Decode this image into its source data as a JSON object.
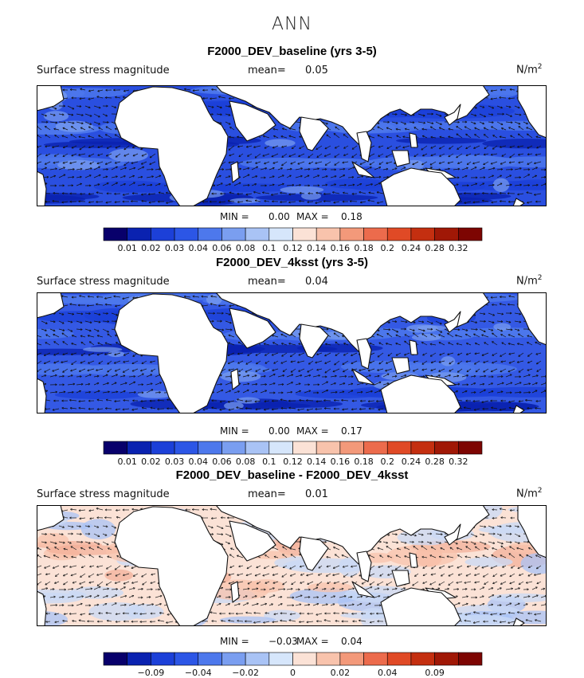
{
  "figure": {
    "season": "ANN",
    "variable": "Surface stress magnitude",
    "units_base": "N/m",
    "units_exp": "2",
    "mean_label": "mean=",
    "min_label": "MIN =",
    "max_label": "MAX ="
  },
  "panels": [
    {
      "title": "F2000_DEV_baseline (yrs 3-5)",
      "mean": "0.05",
      "min": "0.00",
      "max": "0.18",
      "colorbar": "abs",
      "style": "abs_strong"
    },
    {
      "title": "F2000_DEV_4ksst (yrs 3-5)",
      "mean": "0.04",
      "min": "0.00",
      "max": "0.17",
      "colorbar": "abs",
      "style": "abs_mid"
    },
    {
      "title": "F2000_DEV_baseline - F2000_DEV_4ksst",
      "mean": "0.01",
      "min": "−0.03",
      "max": "0.04",
      "colorbar": "diff",
      "style": "diff"
    }
  ],
  "colorbars": {
    "abs": {
      "colors": [
        "#08006b",
        "#0a22b0",
        "#1c40d8",
        "#2c56e6",
        "#4d78ec",
        "#7a9ef0",
        "#a9c3f5",
        "#d6e6fb",
        "#fbe2d6",
        "#f8c3ac",
        "#f3997a",
        "#ec6b4c",
        "#e04a26",
        "#c42f10",
        "#a01806",
        "#7d0502"
      ],
      "labels": [
        "0.01",
        "0.02",
        "0.03",
        "0.04",
        "0.06",
        "0.08",
        "0.1",
        "0.12",
        "0.14",
        "0.16",
        "0.18",
        "0.2",
        "0.24",
        "0.28",
        "0.32"
      ]
    },
    "diff": {
      "colors": [
        "#08006b",
        "#0a22b0",
        "#1c40d8",
        "#2c56e6",
        "#4d78ec",
        "#7a9ef0",
        "#a9c3f5",
        "#d6e6fb",
        "#fbe2d6",
        "#f8c3ac",
        "#f3997a",
        "#ec6b4c",
        "#e04a26",
        "#c42f10",
        "#a01806",
        "#7d0502"
      ],
      "labels": [
        "",
        "−0.09",
        "",
        "−0.04",
        "",
        "−0.02",
        "",
        "0",
        "",
        "0.02",
        "",
        "0.04",
        "",
        "0.09",
        ""
      ]
    }
  },
  "chart_data": [
    {
      "type": "heatmap",
      "title": "F2000_DEV_baseline (yrs 3-5)",
      "variable": "Surface stress magnitude",
      "units": "N/m2",
      "mean": 0.05,
      "min": 0.0,
      "max": 0.18,
      "levels": [
        0.01,
        0.02,
        0.03,
        0.04,
        0.06,
        0.08,
        0.1,
        0.12,
        0.14,
        0.16,
        0.18,
        0.2,
        0.24,
        0.28,
        0.32
      ]
    },
    {
      "type": "heatmap",
      "title": "F2000_DEV_4ksst (yrs 3-5)",
      "variable": "Surface stress magnitude",
      "units": "N/m2",
      "mean": 0.04,
      "min": 0.0,
      "max": 0.17,
      "levels": [
        0.01,
        0.02,
        0.03,
        0.04,
        0.06,
        0.08,
        0.1,
        0.12,
        0.14,
        0.16,
        0.18,
        0.2,
        0.24,
        0.28,
        0.32
      ]
    },
    {
      "type": "heatmap",
      "title": "F2000_DEV_baseline - F2000_DEV_4ksst",
      "variable": "Surface stress magnitude",
      "units": "N/m2",
      "mean": 0.01,
      "min": -0.03,
      "max": 0.04,
      "labeled_levels": [
        -0.09,
        -0.04,
        -0.02,
        0,
        0.02,
        0.04,
        0.09
      ]
    }
  ]
}
